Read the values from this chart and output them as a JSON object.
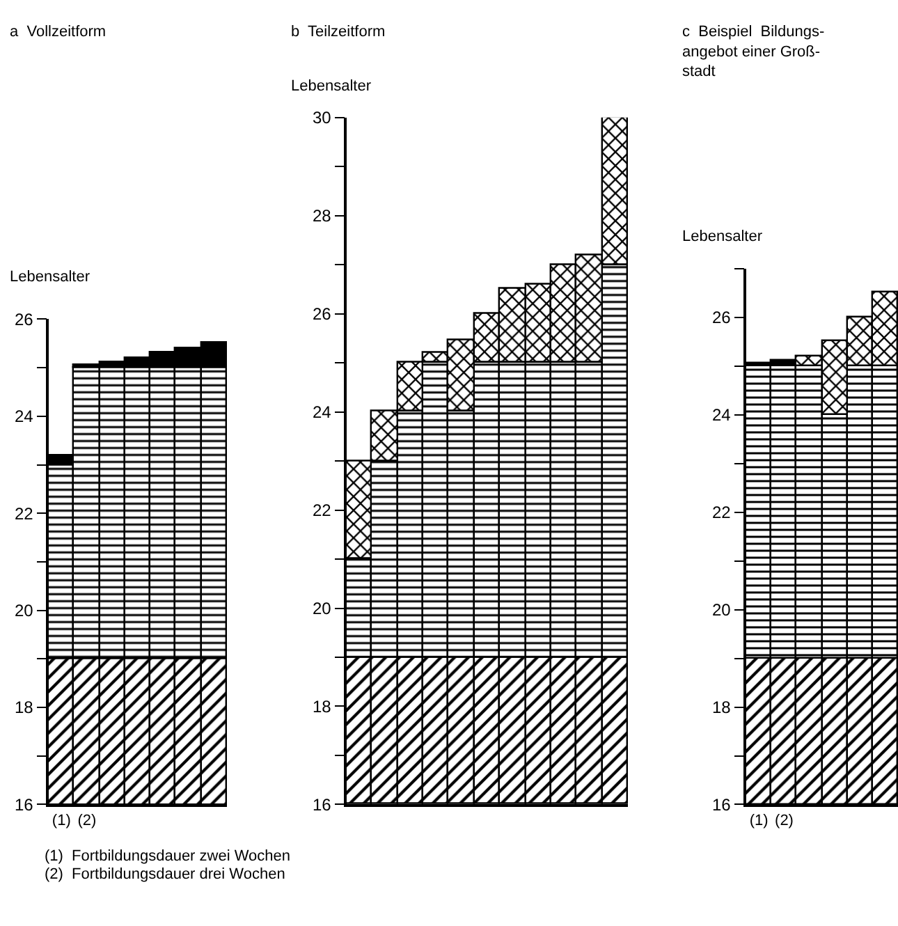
{
  "chart_data": [
    {
      "type": "bar",
      "title": "a  Vollzeitform",
      "ylabel": "Lebensalter",
      "categories": [
        "(1)",
        "(2)",
        null,
        null,
        null,
        null,
        null
      ],
      "series": [
        {
          "color": "#000000",
          "base": [
            16,
            16,
            16,
            16,
            16,
            16,
            16
          ],
          "values": [
            3,
            3,
            3,
            3,
            3,
            3,
            3
          ]
        },
        {
          "color": "#000000",
          "base": [
            19,
            19,
            19,
            19,
            19,
            19,
            19
          ],
          "values": [
            4,
            6,
            6,
            6,
            6,
            6,
            6
          ]
        },
        {
          "color": "#000000",
          "base": [
            23,
            25,
            25,
            25,
            25,
            25,
            25
          ],
          "values": [
            0.2,
            0.05,
            0.1,
            0.2,
            0.3,
            0.4,
            0.5
          ]
        }
      ],
      "ylim": [
        16,
        26
      ],
      "yticks": [
        16,
        {
          "value": 17,
          "label": null
        },
        18,
        {
          "value": 19,
          "label": null
        },
        20,
        {
          "value": 21,
          "label": null
        },
        22,
        {
          "value": 23,
          "label": null
        },
        24,
        {
          "value": 25,
          "label": null
        },
        26
      ],
      "grid": false,
      "legend": false,
      "annotations": [
        "(1)  Fortbildungsdauer zwei Wochen",
        "(2)  Fortbildungsdauer drei Wochen"
      ]
    },
    {
      "type": "bar",
      "title": "b  Teilzeitform",
      "ylabel": "Lebensalter",
      "categories": [
        null,
        null,
        null,
        null,
        null,
        null,
        null,
        null,
        null,
        null,
        null
      ],
      "series": [
        {
          "color": "#000000",
          "base": [
            16,
            16,
            16,
            16,
            16,
            16,
            16,
            16,
            16,
            16,
            16
          ],
          "values": [
            3,
            3,
            3,
            3,
            3,
            3,
            3,
            3,
            3,
            3,
            3
          ]
        },
        {
          "color": "#000000",
          "base": [
            19,
            19,
            19,
            19,
            19,
            19,
            19,
            19,
            19,
            19,
            19
          ],
          "values": [
            2,
            4,
            5,
            6,
            5,
            6,
            6,
            6,
            6,
            6,
            8
          ]
        },
        {
          "color": "#000000",
          "base": [
            21,
            23,
            24,
            25,
            24,
            25,
            25,
            25,
            25,
            25,
            27
          ],
          "values": [
            2,
            1,
            1,
            0.2,
            1.45,
            1,
            1.5,
            1.6,
            2,
            2.2,
            3
          ]
        }
      ],
      "ylim": [
        16,
        30
      ],
      "yticks": [
        16,
        {
          "value": 17,
          "label": null
        },
        18,
        {
          "value": 19,
          "label": null
        },
        20,
        {
          "value": 21,
          "label": null
        },
        22,
        {
          "value": 23,
          "label": null
        },
        24,
        {
          "value": 25,
          "label": null
        },
        26,
        {
          "value": 27,
          "label": null
        },
        28,
        {
          "value": 29,
          "label": null
        },
        30
      ],
      "grid": false,
      "legend": false
    },
    {
      "type": "bar",
      "title": "c  Beispiel  Bildungs-\nangebot einer Groß-\nstadt",
      "ylabel": "Lebensalter",
      "categories": [
        "(1)",
        "(2)",
        null,
        null,
        null,
        null
      ],
      "series": [
        {
          "color": "#000000",
          "base": [
            16,
            16,
            16,
            16,
            16,
            16
          ],
          "values": [
            3,
            3,
            3,
            3,
            3,
            3
          ]
        },
        {
          "color": "#000000",
          "base": [
            19,
            19,
            19,
            19,
            19,
            19
          ],
          "values": [
            6,
            6,
            6,
            5,
            6,
            6
          ]
        },
        {
          "color": "#000000",
          "base": [
            25,
            25,
            null,
            null,
            null,
            null
          ],
          "values": [
            0.05,
            0.1,
            null,
            null,
            null,
            null
          ]
        },
        {
          "color": "#000000",
          "base": [
            null,
            null,
            25,
            24,
            25,
            25
          ],
          "values": [
            null,
            null,
            0.2,
            1.5,
            1,
            1.5
          ]
        }
      ],
      "ylim": [
        16,
        27
      ],
      "yticks": [
        16,
        {
          "value": 17,
          "label": null
        },
        18,
        {
          "value": 19,
          "label": null
        },
        20,
        {
          "value": 21,
          "label": null
        },
        22,
        {
          "value": 23,
          "label": null
        },
        24,
        {
          "value": 25,
          "label": null
        },
        26,
        {
          "value": 27,
          "label": null
        }
      ],
      "grid": false,
      "legend": false
    }
  ]
}
